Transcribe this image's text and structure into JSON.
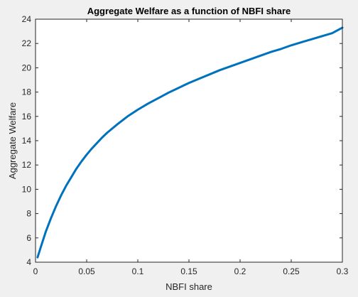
{
  "chart_data": {
    "type": "line",
    "title": "Aggregate Welfare as a function of NBFI share",
    "xlabel": "NBFI share",
    "ylabel": "Aggregate Welfare",
    "xlim": [
      0,
      0.3
    ],
    "ylim": [
      4,
      24
    ],
    "xticks": [
      0,
      0.05,
      0.1,
      0.15,
      0.2,
      0.25,
      0.3
    ],
    "xtick_labels": [
      "0",
      "0.05",
      "0.1",
      "0.15",
      "0.2",
      "0.25",
      "0.3"
    ],
    "yticks": [
      4,
      6,
      8,
      10,
      12,
      14,
      16,
      18,
      20,
      22,
      24
    ],
    "ytick_labels": [
      "4",
      "6",
      "8",
      "10",
      "12",
      "14",
      "16",
      "18",
      "20",
      "22",
      "24"
    ],
    "grid": false,
    "legend": "none",
    "series": [
      {
        "color": "#0072bd",
        "x": [
          0.002,
          0.005,
          0.01,
          0.015,
          0.02,
          0.025,
          0.03,
          0.035,
          0.04,
          0.045,
          0.05,
          0.055,
          0.06,
          0.065,
          0.07,
          0.08,
          0.09,
          0.1,
          0.11,
          0.12,
          0.13,
          0.14,
          0.15,
          0.16,
          0.17,
          0.18,
          0.19,
          0.2,
          0.21,
          0.22,
          0.23,
          0.24,
          0.25,
          0.26,
          0.27,
          0.28,
          0.29,
          0.3
        ],
        "y": [
          4.4,
          5.2,
          6.5,
          7.6,
          8.6,
          9.5,
          10.3,
          11.0,
          11.7,
          12.3,
          12.85,
          13.35,
          13.8,
          14.25,
          14.65,
          15.35,
          16.0,
          16.55,
          17.05,
          17.5,
          17.95,
          18.35,
          18.75,
          19.1,
          19.45,
          19.8,
          20.1,
          20.4,
          20.7,
          21.0,
          21.3,
          21.55,
          21.85,
          22.1,
          22.35,
          22.6,
          22.85,
          23.3
        ]
      }
    ]
  }
}
